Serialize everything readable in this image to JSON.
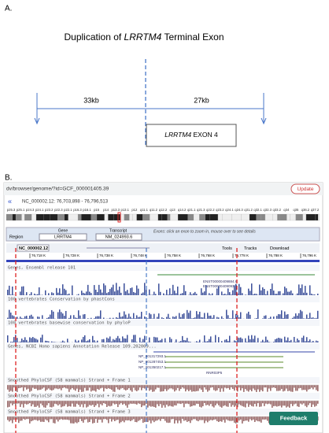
{
  "panel_a": {
    "label": "A.",
    "title_prefix": "Duplication of ",
    "title_gene": "LRRTM4",
    "title_suffix": " Terminal Exon",
    "left_distance": "33kb",
    "right_distance": "27kb",
    "exon_gene": "LRRTM4",
    "exon_suffix": " EXON 4"
  },
  "panel_b": {
    "label": "B.",
    "url": "dv/browser/genome/?id=GCF_000001405.39",
    "update": "Update",
    "location": "NC_000002.12: 76,703,898 - 76,796,513",
    "bands": [
      "p25.3",
      "p25.1",
      "p24.3",
      "p24.1",
      "p23.2",
      "p22.3",
      "p22.1",
      "p16.3",
      "p16.1",
      "p15",
      "p14",
      "p13.3",
      "p13.1",
      "p12",
      "q11.1",
      "q11.2",
      "q12.2",
      "q13",
      "q14.2",
      "q21.1",
      "q21.3",
      "q22.2",
      "q23.2",
      "q24.1",
      "q24.3",
      "q31.2",
      "q32.1",
      "q32.3",
      "q33.2",
      "q34",
      "q35",
      "q36.2",
      "q37.2"
    ],
    "region": "Region",
    "gene_label": "Gene",
    "gene": "LRRTM4",
    "transcript_label": "Transcript",
    "transcript": "NM_024993.6",
    "exon_hint": "Exons: click an exon to zoom in, mouse over to see details",
    "accession": "NC_000002.12",
    "tools": "Tools",
    "tracks": "Tracks",
    "download": "Download",
    "ruler": [
      "76,718 K",
      "76,728 K",
      "76,738 K",
      "76,748 K",
      "76,758 K",
      "76,768 K",
      "76,778 K",
      "76,788 K",
      "76,796 K"
    ],
    "track_titles": [
      "Genes, Ensembl release 101",
      "100 vertebrates Conservation by phastCons",
      "100 vertebrates basewise conservation by phyloP",
      "Genes, NCBI Homo sapiens Annotation Release 109.202009...",
      "Smoothed PhyloCSF (58 mammals) Strand + Frame 1",
      "Smoothed PhyloCSF (58 mammals) Strand + Frame 2",
      "Smoothed PhyloCSF (58 mammals) Strand + Frame 3"
    ],
    "ensembl_transcripts": [
      "ENST00000409884.6",
      "ENST00000409093.2"
    ],
    "ncbi_transcripts": [
      "NP_001317293.1",
      "NP_001287453.1",
      "NP_001350217.1",
      "RNR03P5"
    ],
    "feedback": "Feedback"
  }
}
